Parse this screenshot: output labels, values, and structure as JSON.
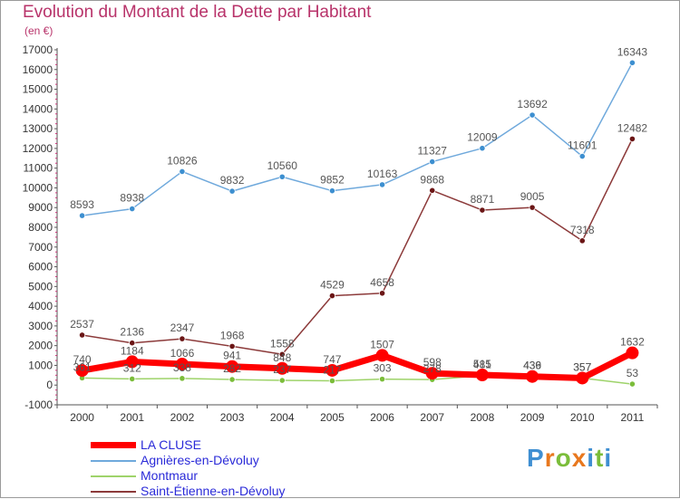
{
  "header": {
    "title": "Evolution du Montant de la Dette par Habitant",
    "unit": "(en €)"
  },
  "brand": {
    "text": "Proxiti",
    "letter_colors": [
      "#3f8fd2",
      "#e8781e",
      "#7bbd3a",
      "#e8781e",
      "#3f8fd2",
      "#7bbd3a",
      "#3f8fd2"
    ]
  },
  "chart_data": {
    "type": "line",
    "title": "Evolution du Montant de la Dette par Habitant",
    "ylabel": "(en €)",
    "xlabel": "",
    "categories": [
      "2000",
      "2001",
      "2002",
      "2003",
      "2004",
      "2005",
      "2006",
      "2007",
      "2008",
      "2009",
      "2010",
      "2011"
    ],
    "ylim": [
      -1000,
      17000
    ],
    "yticks": [
      -1000,
      0,
      1000,
      2000,
      3000,
      4000,
      5000,
      6000,
      7000,
      8000,
      9000,
      10000,
      11000,
      12000,
      13000,
      14000,
      15000,
      16000,
      17000
    ],
    "legend_position": "bottom-left",
    "series": [
      {
        "name": "Agnières-en-Dévoluy",
        "color": "#6fa9dc",
        "marker_color": "#3d8fd0",
        "values": [
          8593,
          8938,
          10826,
          9832,
          10560,
          9852,
          10163,
          11327,
          12009,
          13692,
          11601,
          16343
        ]
      },
      {
        "name": "Saint-Étienne-en-Dévoluy",
        "color": "#8c3a3a",
        "marker_color": "#6b1616",
        "values": [
          2537,
          2136,
          2347,
          1968,
          1558,
          4529,
          4658,
          9868,
          8871,
          9005,
          7318,
          12482
        ]
      },
      {
        "name": "Montmaur",
        "color": "#9ed36a",
        "marker_color": "#7bbd3a",
        "values": [
          361,
          312,
          338,
          282,
          237,
          217,
          303,
          278,
          481,
          439,
          357,
          53
        ]
      },
      {
        "name": "LA CLUSE",
        "color": "#ff0000",
        "marker_color": "#ff0000",
        "values": [
          740,
          1184,
          1066,
          941,
          848,
          747,
          1507,
          598,
          515,
          436,
          357,
          1632
        ]
      }
    ]
  },
  "legend": {
    "items": [
      {
        "label": "LA CLUSE",
        "color": "#ff0000"
      },
      {
        "label": "Agnières-en-Dévoluy",
        "color": "#6fa9dc"
      },
      {
        "label": "Montmaur",
        "color": "#9ed36a"
      },
      {
        "label": "Saint-Étienne-en-Dévoluy",
        "color": "#8c3a3a"
      }
    ]
  }
}
